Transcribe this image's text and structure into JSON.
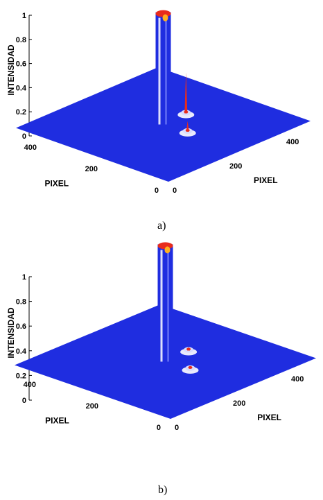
{
  "chart_data": [
    {
      "type": "surface",
      "panel_label": "a)",
      "zlabel": "INTENSIDAD",
      "xlabel": "PIXEL",
      "ylabel": "PIXEL",
      "zlim": [
        0,
        1
      ],
      "z_ticks": [
        "0",
        "0.2",
        "0.4",
        "0.6",
        "0.8",
        "1"
      ],
      "x_ticks": [
        "0",
        "200",
        "400"
      ],
      "y_ticks": [
        "0",
        "200",
        "400"
      ],
      "peaks": [
        {
          "x": 250,
          "y": 250,
          "intensity": 0.93
        },
        {
          "x": 330,
          "y": 250,
          "intensity": 0.35
        },
        {
          "x": 250,
          "y": 170,
          "intensity": 0.1
        }
      ]
    },
    {
      "type": "surface",
      "panel_label": "b)",
      "zlabel": "INTENSIDAD",
      "xlabel": "PIXEL",
      "ylabel": "PIXEL",
      "zlim": [
        0,
        1
      ],
      "z_ticks": [
        "0",
        "0.2",
        "0.4",
        "0.6",
        "0.8",
        "1"
      ],
      "x_ticks": [
        "0",
        "200",
        "400"
      ],
      "y_ticks": [
        "0",
        "200",
        "400"
      ],
      "peaks": [
        {
          "x": 250,
          "y": 250,
          "intensity": 0.95
        },
        {
          "x": 330,
          "y": 250,
          "intensity": 0.04
        },
        {
          "x": 250,
          "y": 170,
          "intensity": 0.03
        }
      ]
    }
  ],
  "colors": {
    "surface": "#1f2de0",
    "peak_top": "#e82c1c",
    "highlight": "#ffffff"
  }
}
